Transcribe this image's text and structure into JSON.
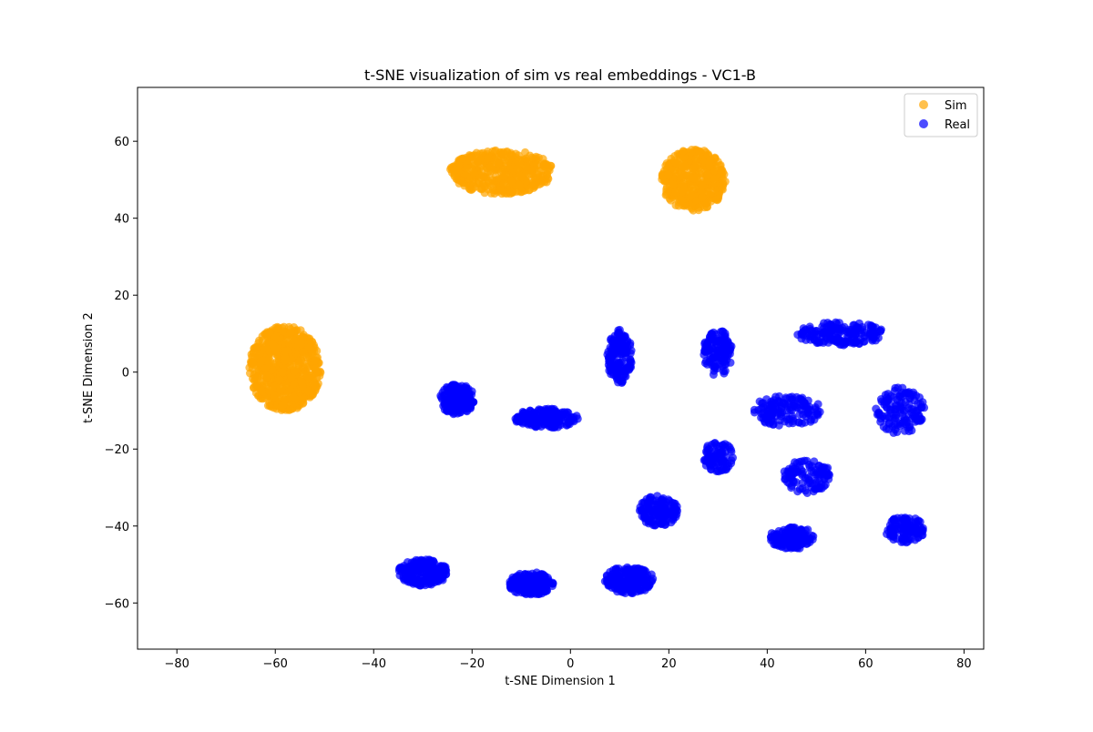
{
  "chart_data": {
    "type": "scatter",
    "title": "t-SNE visualization of sim vs real embeddings - VC1-B",
    "xlabel": "t-SNE Dimension 1",
    "ylabel": "t-SNE Dimension 2",
    "xlim": [
      -88,
      84
    ],
    "ylim": [
      -72,
      74
    ],
    "xticks": [
      -80,
      -60,
      -40,
      -20,
      0,
      20,
      40,
      60,
      80
    ],
    "yticks": [
      -60,
      -40,
      -20,
      0,
      20,
      40,
      60
    ],
    "xtick_labels": [
      "−80",
      "−60",
      "−40",
      "−20",
      "0",
      "20",
      "40",
      "60",
      "80"
    ],
    "ytick_labels": [
      "−60",
      "−40",
      "−20",
      "0",
      "20",
      "40",
      "60"
    ],
    "grid": false,
    "legend_position": "top-right",
    "series": [
      {
        "name": "Sim",
        "color": "#FFA500",
        "alpha": 0.7,
        "clusters": [
          {
            "center": [
              -58,
              1
            ],
            "spread": [
              14.5,
              22
            ],
            "n": 700
          },
          {
            "center": [
              -14,
              52
            ],
            "spread": [
              21,
              11.5
            ],
            "n": 450
          },
          {
            "center": [
              25,
              50
            ],
            "spread": [
              13,
              16
            ],
            "n": 420
          }
        ]
      },
      {
        "name": "Real",
        "color": "#0000FF",
        "alpha": 0.7,
        "clusters": [
          {
            "center": [
              -23,
              -7
            ],
            "spread": [
              7,
              8
            ],
            "n": 160
          },
          {
            "center": [
              -5,
              -12
            ],
            "spread": [
              13,
              5
            ],
            "n": 170
          },
          {
            "center": [
              10,
              4
            ],
            "spread": [
              5,
              14
            ],
            "n": 150
          },
          {
            "center": [
              30,
              5
            ],
            "spread": [
              6,
              12
            ],
            "n": 120
          },
          {
            "center": [
              55,
              10
            ],
            "spread": [
              18,
              6
            ],
            "n": 170
          },
          {
            "center": [
              67,
              -10
            ],
            "spread": [
              10,
              12
            ],
            "n": 130
          },
          {
            "center": [
              44,
              -10
            ],
            "spread": [
              14,
              8
            ],
            "n": 140
          },
          {
            "center": [
              30,
              -22
            ],
            "spread": [
              6,
              8
            ],
            "n": 80
          },
          {
            "center": [
              18,
              -36
            ],
            "spread": [
              8,
              8
            ],
            "n": 130
          },
          {
            "center": [
              48,
              -27
            ],
            "spread": [
              10,
              9
            ],
            "n": 100
          },
          {
            "center": [
              45,
              -43
            ],
            "spread": [
              9,
              6
            ],
            "n": 120
          },
          {
            "center": [
              68,
              -41
            ],
            "spread": [
              8,
              7
            ],
            "n": 110
          },
          {
            "center": [
              -30,
              -52
            ],
            "spread": [
              10,
              7
            ],
            "n": 200
          },
          {
            "center": [
              -8,
              -55
            ],
            "spread": [
              9,
              6
            ],
            "n": 170
          },
          {
            "center": [
              12,
              -54
            ],
            "spread": [
              10,
              7
            ],
            "n": 190
          }
        ]
      }
    ]
  }
}
